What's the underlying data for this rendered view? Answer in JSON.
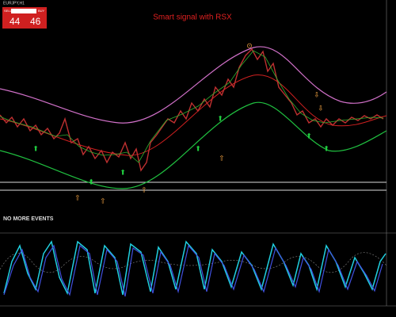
{
  "header": {
    "symbol": "EURJPY,H1"
  },
  "trade_panel": {
    "sell_label": "SELL",
    "buy_label": "BUY",
    "sell_price": "44",
    "buy_price": "46"
  },
  "chart": {
    "title": "Smart signal with  RSX"
  },
  "events_panel": {
    "message": "NO MORE EVENTS"
  }
}
